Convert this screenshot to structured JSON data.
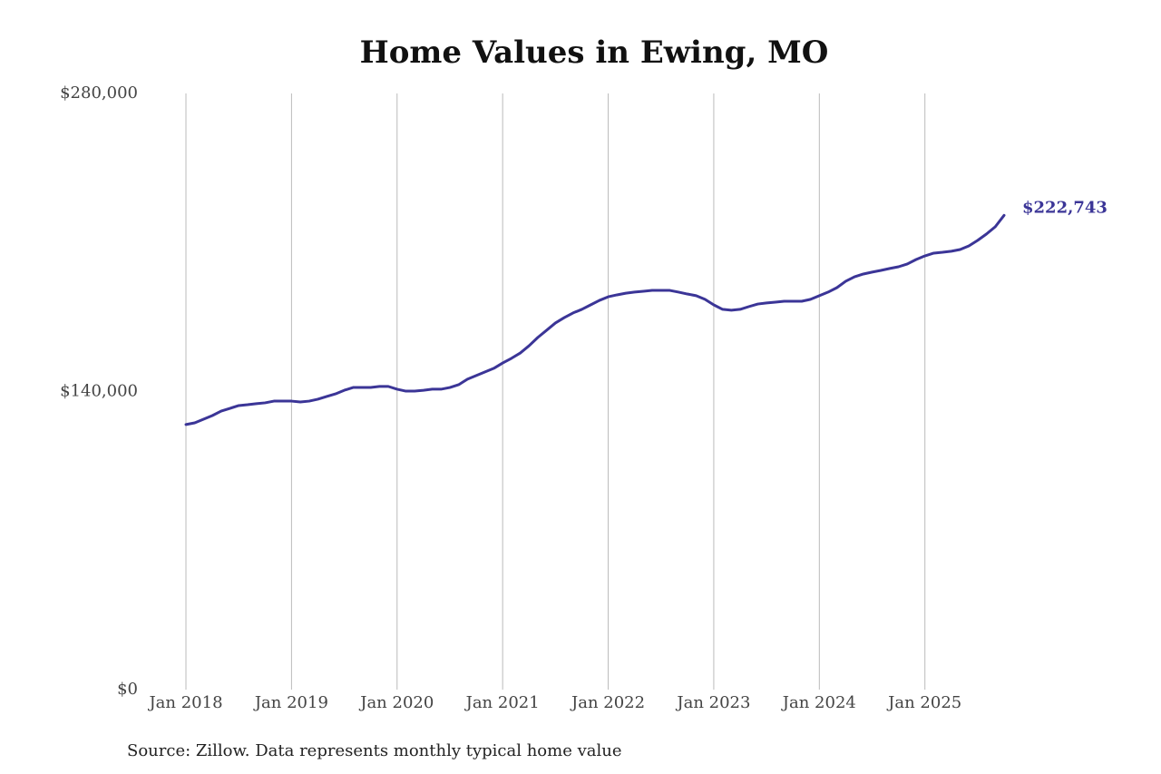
{
  "chart_data": {
    "type": "line",
    "title": "Home Values in Ewing, MO",
    "source": "Source: Zillow. Data represents monthly typical home value",
    "x": [
      "2018-01",
      "2018-02",
      "2018-03",
      "2018-04",
      "2018-05",
      "2018-06",
      "2018-07",
      "2018-08",
      "2018-09",
      "2018-10",
      "2018-11",
      "2018-12",
      "2019-01",
      "2019-02",
      "2019-03",
      "2019-04",
      "2019-05",
      "2019-06",
      "2019-07",
      "2019-08",
      "2019-09",
      "2019-10",
      "2019-11",
      "2019-12",
      "2020-01",
      "2020-02",
      "2020-03",
      "2020-04",
      "2020-05",
      "2020-06",
      "2020-07",
      "2020-08",
      "2020-09",
      "2020-10",
      "2020-11",
      "2020-12",
      "2021-01",
      "2021-02",
      "2021-03",
      "2021-04",
      "2021-05",
      "2021-06",
      "2021-07",
      "2021-08",
      "2021-09",
      "2021-10",
      "2021-11",
      "2021-12",
      "2022-01",
      "2022-02",
      "2022-03",
      "2022-04",
      "2022-05",
      "2022-06",
      "2022-07",
      "2022-08",
      "2022-09",
      "2022-10",
      "2022-11",
      "2022-12",
      "2023-01",
      "2023-02",
      "2023-03",
      "2023-04",
      "2023-05",
      "2023-06",
      "2023-07",
      "2023-08",
      "2023-09",
      "2023-10",
      "2023-11",
      "2023-12",
      "2024-01",
      "2024-02",
      "2024-03",
      "2024-04",
      "2024-05",
      "2024-06",
      "2024-07",
      "2024-08",
      "2024-09",
      "2024-10",
      "2024-11",
      "2024-12",
      "2025-01",
      "2025-02",
      "2025-03",
      "2025-04",
      "2025-05",
      "2025-06",
      "2025-07",
      "2025-08",
      "2025-09",
      "2025-10"
    ],
    "values": [
      124500,
      125300,
      127000,
      128700,
      130800,
      132100,
      133400,
      133800,
      134300,
      134700,
      135500,
      135500,
      135500,
      135100,
      135500,
      136400,
      137700,
      138900,
      140600,
      141900,
      141900,
      141900,
      142400,
      142400,
      141100,
      140200,
      140200,
      140600,
      141100,
      141100,
      141900,
      143200,
      145800,
      147500,
      149200,
      150900,
      153400,
      155600,
      158100,
      161500,
      165400,
      168800,
      172200,
      174700,
      176900,
      178600,
      180700,
      182800,
      184500,
      185400,
      186200,
      186700,
      187100,
      187500,
      187500,
      187500,
      186700,
      185800,
      185000,
      183300,
      180700,
      178600,
      178200,
      178600,
      179900,
      181100,
      181600,
      182000,
      182400,
      182400,
      182400,
      183300,
      185000,
      186700,
      188800,
      191800,
      193900,
      195200,
      196100,
      196900,
      197800,
      198600,
      199900,
      202000,
      203700,
      205000,
      205400,
      205900,
      206700,
      208400,
      211000,
      214000,
      217400,
      222743
    ],
    "value_labels": [
      null,
      null,
      null,
      null,
      null,
      null,
      null,
      null,
      null,
      null,
      null,
      null,
      null,
      null,
      null,
      null,
      null,
      null,
      null,
      null,
      null,
      null,
      null,
      null,
      null,
      null,
      null,
      null,
      null,
      null,
      null,
      null,
      null,
      null,
      null,
      null,
      null,
      null,
      null,
      null,
      null,
      null,
      null,
      null,
      null,
      null,
      null,
      null,
      null,
      null,
      null,
      null,
      null,
      null,
      null,
      null,
      null,
      null,
      null,
      null,
      null,
      null,
      null,
      null,
      null,
      null,
      null,
      null,
      null,
      null,
      null,
      null,
      null,
      null,
      null,
      null,
      null,
      null,
      null,
      null,
      null,
      null,
      null,
      null,
      null,
      null,
      null,
      null,
      null,
      null,
      null,
      null,
      null,
      "$222,743"
    ],
    "color": "#3b3597",
    "xlim": [
      "2018-01",
      "2025-10"
    ],
    "xticks": [
      {
        "value": "2018-01",
        "label": "Jan 2018"
      },
      {
        "value": "2019-01",
        "label": "Jan 2019"
      },
      {
        "value": "2020-01",
        "label": "Jan 2020"
      },
      {
        "value": "2021-01",
        "label": "Jan 2021"
      },
      {
        "value": "2022-01",
        "label": "Jan 2022"
      },
      {
        "value": "2023-01",
        "label": "Jan 2023"
      },
      {
        "value": "2024-01",
        "label": "Jan 2024"
      },
      {
        "value": "2025-01",
        "label": "Jan 2025"
      }
    ],
    "ylim": [
      0,
      280000
    ],
    "yticks": [
      {
        "value": 0,
        "label": "$0"
      },
      {
        "value": 140000,
        "label": "$140,000"
      },
      {
        "value": 280000,
        "label": "$280,000"
      }
    ],
    "grid": "x"
  }
}
